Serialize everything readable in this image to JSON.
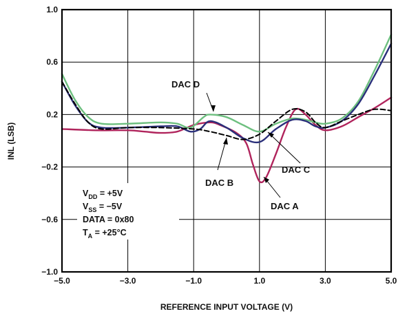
{
  "chart_data": {
    "type": "line",
    "title": "",
    "xlabel": "REFERENCE INPUT VOLTAGE (V)",
    "ylabel": "INL (LSB)",
    "xlim": [
      -5.0,
      5.0
    ],
    "ylim": [
      -1.0,
      1.0
    ],
    "x_ticks": [
      "−5.0",
      "−3.0",
      "−1.0",
      "1.0",
      "3.0",
      "5.0"
    ],
    "y_ticks": [
      "1.0",
      "0.6",
      "0.2",
      "−0.2",
      "−0.6",
      "−1.0"
    ],
    "grid": true,
    "series": [
      {
        "name": "DAC A",
        "color": "#b0245c",
        "dash": "solid",
        "points": [
          [
            -5.0,
            0.09
          ],
          [
            -4.0,
            0.08
          ],
          [
            -3.0,
            0.08
          ],
          [
            -2.5,
            0.07
          ],
          [
            -2.0,
            0.06
          ],
          [
            -1.5,
            0.07
          ],
          [
            -1.0,
            0.12
          ],
          [
            -0.5,
            0.14
          ],
          [
            -0.2,
            0.12
          ],
          [
            0.3,
            0.06
          ],
          [
            0.6,
            -0.02
          ],
          [
            0.8,
            -0.18
          ],
          [
            1.0,
            -0.31
          ],
          [
            1.2,
            -0.28
          ],
          [
            1.5,
            -0.1
          ],
          [
            1.8,
            0.1
          ],
          [
            2.1,
            0.24
          ],
          [
            2.4,
            0.2
          ],
          [
            2.7,
            0.12
          ],
          [
            3.0,
            0.08
          ],
          [
            3.5,
            0.11
          ],
          [
            4.0,
            0.18
          ],
          [
            4.5,
            0.25
          ],
          [
            5.0,
            0.33
          ]
        ]
      },
      {
        "name": "DAC B",
        "color": "#000000",
        "dash": "dashed",
        "points": [
          [
            -5.0,
            0.45
          ],
          [
            -4.6,
            0.28
          ],
          [
            -4.2,
            0.14
          ],
          [
            -3.8,
            0.09
          ],
          [
            -3.0,
            0.1
          ],
          [
            -2.0,
            0.1
          ],
          [
            -1.0,
            0.09
          ],
          [
            -0.5,
            0.07
          ],
          [
            0.0,
            0.04
          ],
          [
            0.5,
            0.01
          ],
          [
            1.0,
            0.05
          ],
          [
            1.5,
            0.15
          ],
          [
            2.0,
            0.24
          ],
          [
            2.4,
            0.22
          ],
          [
            2.7,
            0.14
          ],
          [
            3.0,
            0.1
          ],
          [
            3.5,
            0.15
          ],
          [
            4.0,
            0.2
          ],
          [
            4.5,
            0.24
          ],
          [
            5.0,
            0.23
          ]
        ]
      },
      {
        "name": "DAC C",
        "color": "#2a2f7a",
        "dash": "solid",
        "points": [
          [
            -5.0,
            0.45
          ],
          [
            -4.6,
            0.27
          ],
          [
            -4.2,
            0.14
          ],
          [
            -3.8,
            0.1
          ],
          [
            -3.0,
            0.1
          ],
          [
            -2.0,
            0.11
          ],
          [
            -1.5,
            0.11
          ],
          [
            -1.1,
            0.07
          ],
          [
            -0.8,
            0.09
          ],
          [
            -0.5,
            0.15
          ],
          [
            0.0,
            0.1
          ],
          [
            0.5,
            0.02
          ],
          [
            1.0,
            -0.01
          ],
          [
            1.5,
            0.09
          ],
          [
            2.0,
            0.16
          ],
          [
            2.4,
            0.15
          ],
          [
            2.7,
            0.11
          ],
          [
            3.0,
            0.1
          ],
          [
            3.5,
            0.15
          ],
          [
            4.0,
            0.28
          ],
          [
            4.5,
            0.5
          ],
          [
            5.0,
            0.74
          ]
        ]
      },
      {
        "name": "DAC D",
        "color": "#6dbf7f",
        "dash": "solid",
        "points": [
          [
            -5.0,
            0.51
          ],
          [
            -4.6,
            0.31
          ],
          [
            -4.2,
            0.18
          ],
          [
            -3.8,
            0.13
          ],
          [
            -3.0,
            0.13
          ],
          [
            -2.0,
            0.14
          ],
          [
            -1.5,
            0.13
          ],
          [
            -1.1,
            0.1
          ],
          [
            -0.7,
            0.18
          ],
          [
            -0.5,
            0.2
          ],
          [
            0.0,
            0.18
          ],
          [
            0.5,
            0.12
          ],
          [
            1.0,
            0.07
          ],
          [
            1.5,
            0.13
          ],
          [
            2.0,
            0.17
          ],
          [
            2.4,
            0.16
          ],
          [
            2.7,
            0.14
          ],
          [
            3.0,
            0.13
          ],
          [
            3.5,
            0.17
          ],
          [
            4.0,
            0.3
          ],
          [
            4.5,
            0.54
          ],
          [
            5.0,
            0.81
          ]
        ]
      }
    ],
    "annotations": {
      "dac_d": "DAC D",
      "dac_c": "DAC C",
      "dac_b": "DAC B",
      "dac_a": "DAC A"
    },
    "conditions": [
      {
        "main": "V",
        "sub": "DD",
        "rest": " = +5V"
      },
      {
        "main": "V",
        "sub": "SS",
        "rest": " = −5V"
      },
      {
        "main": "DATA = 0x80",
        "sub": "",
        "rest": ""
      },
      {
        "main": "T",
        "sub": "A",
        "rest": " = +25°C"
      }
    ]
  }
}
